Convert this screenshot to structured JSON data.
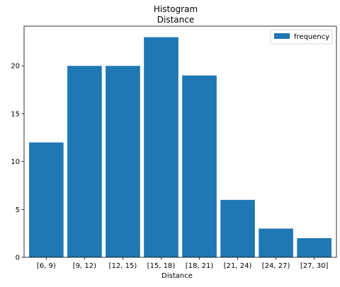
{
  "chart_data": {
    "type": "bar",
    "title": "Histogram",
    "subtitle": "Distance",
    "xlabel": "Distance",
    "ylabel": "",
    "categories": [
      "[6, 9)",
      "[9, 12)",
      "[12, 15)",
      "[15, 18)",
      "[18, 21)",
      "[21, 24)",
      "[24, 27)",
      "[27, 30]"
    ],
    "series": [
      {
        "name": "frequency",
        "values": [
          12,
          20,
          20,
          23,
          19,
          6,
          3,
          2
        ],
        "color": "#1f77b4"
      }
    ],
    "ylim": [
      0,
      24.15
    ],
    "yticks": [
      0,
      5,
      10,
      15,
      20
    ],
    "grid": false,
    "legend": "top-right"
  }
}
